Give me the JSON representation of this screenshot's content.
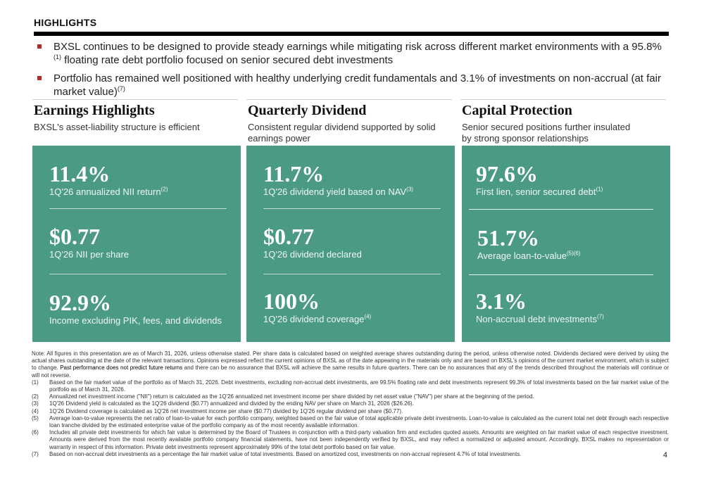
{
  "header": {
    "title": "HIGHLIGHTS"
  },
  "bullets": [
    {
      "text": "BXSL continues to be designed to provide steady earnings while mitigating risk across different market environments with a 95.8%",
      "sup": "(1)",
      "text2": " floating rate debt portfolio focused on senior secured debt investments"
    },
    {
      "text": "Portfolio has remained well positioned with healthy underlying credit fundamentals and 3.1% of investments on non-accrual (at fair market value)",
      "sup": "(7)",
      "text2": ""
    }
  ],
  "columns": [
    {
      "title": "Earnings Highlights",
      "subtitle": "BXSL's asset-liability structure is efficient",
      "metrics": [
        {
          "value": "11.4%",
          "label": "1Q'26 annualized NII return",
          "sup": "(2)"
        },
        {
          "value": "$0.77",
          "label": "1Q'26 NII per share",
          "sup": ""
        },
        {
          "value": "92.9%",
          "label": "Income excluding PIK, fees, and dividends",
          "sup": ""
        }
      ]
    },
    {
      "title": "Quarterly Dividend",
      "subtitle": "Consistent regular dividend supported by solid earnings power",
      "metrics": [
        {
          "value": "11.7%",
          "label": "1Q'26 dividend yield based on NAV",
          "sup": "(3)"
        },
        {
          "value": "$0.77",
          "label": "1Q'26 dividend declared",
          "sup": ""
        },
        {
          "value": "100%",
          "label": "1Q'26 dividend coverage",
          "sup": "(4)"
        }
      ]
    },
    {
      "title": "Capital Protection",
      "subtitle": "Senior secured positions further insulated by strong sponsor relationships",
      "metrics": [
        {
          "value": "97.6%",
          "label": "First lien, senior secured debt",
          "sup": "(1)"
        },
        {
          "value": "51.7%",
          "label": "Average loan-to-value",
          "sup": "(5)(6)"
        },
        {
          "value": "3.1%",
          "label": "Non-accrual debt investments",
          "sup": "(7)"
        }
      ]
    }
  ],
  "notes": {
    "intro_a": "Note: All figures in this presentation are as of March 31, 2026, unless otherwise stated. Per share data is calculated based on weighted average shares outstanding during the period, unless otherwise noted. Dividends declared were derived by using the actual shares outstanding at the date of the relevant transactions. Opinions expressed reflect the current opinions of BXSL as of the date appearing in the materials only and are based on BXSL's opinions of the current market environment, which is subject to change. ",
    "intro_em": "Past performance does not predict future returns",
    "intro_b": " and there can be no assurance that BXSL will achieve the same results in future quarters. There can be no assurances that any of the trends described throughout the materials will continue or will not reverse.",
    "items": [
      {
        "num": "(1)",
        "text": "Based on the fair market value of the portfolio as of March 31, 2026. Debt investments, excluding non-accrual debt investments, are 99.5% floating rate and debt investments represent 99.3% of total investments based on the fair market value of the portfolio as of March 31, 2026."
      },
      {
        "num": "(2)",
        "text": "Annualized net investment income (\"NII\") return is calculated as the 1Q'26 annualized net investment income per share divided by net asset value (\"NAV\") per share at the beginning of the period."
      },
      {
        "num": "(3)",
        "text": "1Q'26 Dividend yield is calculated as the 1Q'26 dividend ($0.77) annualized and divided by the ending NAV per share on March 31, 2026 ($26.26)."
      },
      {
        "num": "(4)",
        "text": "1Q'26 Dividend coverage is calculated as 1Q'26 net investment income per share ($0.77) divided by 1Q'26 regular dividend per share ($0.77)."
      },
      {
        "num": "(5)",
        "text": "Average loan-to-value represents the net ratio of loan-to-value for each portfolio company, weighted based on the fair value of total applicable private debt investments. Loan-to-value is calculated as the current total net debt through each respective loan tranche divided by the estimated enterprise value of the portfolio company as of the most recently available information."
      },
      {
        "num": "(6)",
        "text": "Includes all private debt investments for which fair value is determined by the Board of Trustees in conjunction with a third-party valuation firm and excludes quoted assets. Amounts are weighted on fair market value of each respective investment. Amounts were derived from the most recently available portfolio company financial statements, have not been independently verified by BXSL, and may reflect a normalized or adjusted amount. Accordingly, BXSL makes no representation or warranty in respect of this information. Private debt investments represent approximately 99% of the total debt portfolio based on fair value."
      },
      {
        "num": "(7)",
        "text": "Based on non-accrual debt investments as a percentage the fair market value of total investments. Based on amortized cost, investments on non-accrual represent 4.7% of total investments."
      }
    ]
  },
  "page_number": "4",
  "colors": {
    "panel": "#4a9a86",
    "bullet": "#b52a2a"
  }
}
